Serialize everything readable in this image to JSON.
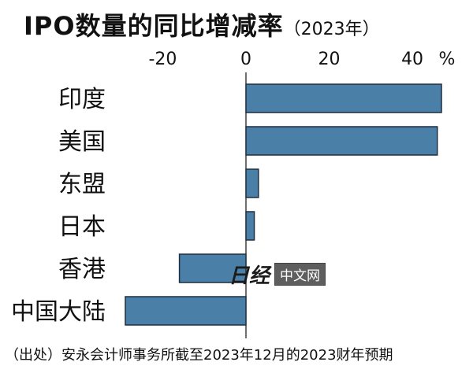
{
  "title": "IPO数量的同比增减率",
  "subtitle": "（2023年）",
  "note": "（出处）安永会计师事务所截至2023年12月的2023财年预期",
  "watermark": {
    "logo_text": "日经",
    "badge_text": "中文网"
  },
  "colors": {
    "bar": "#4a7fa8",
    "bar_border": "#1f2f3f",
    "axis": "#111111"
  },
  "chart_data": {
    "type": "bar",
    "orientation": "horizontal",
    "title": "IPO数量的同比增减率",
    "unit": "%",
    "categories": [
      "印度",
      "美国",
      "东盟",
      "日本",
      "香港",
      "中国大陆"
    ],
    "values": [
      47,
      46,
      3,
      2,
      -16,
      -29
    ],
    "xlim": [
      -30,
      50
    ],
    "xticks": [
      -20,
      0,
      20,
      40
    ],
    "grid": false
  }
}
